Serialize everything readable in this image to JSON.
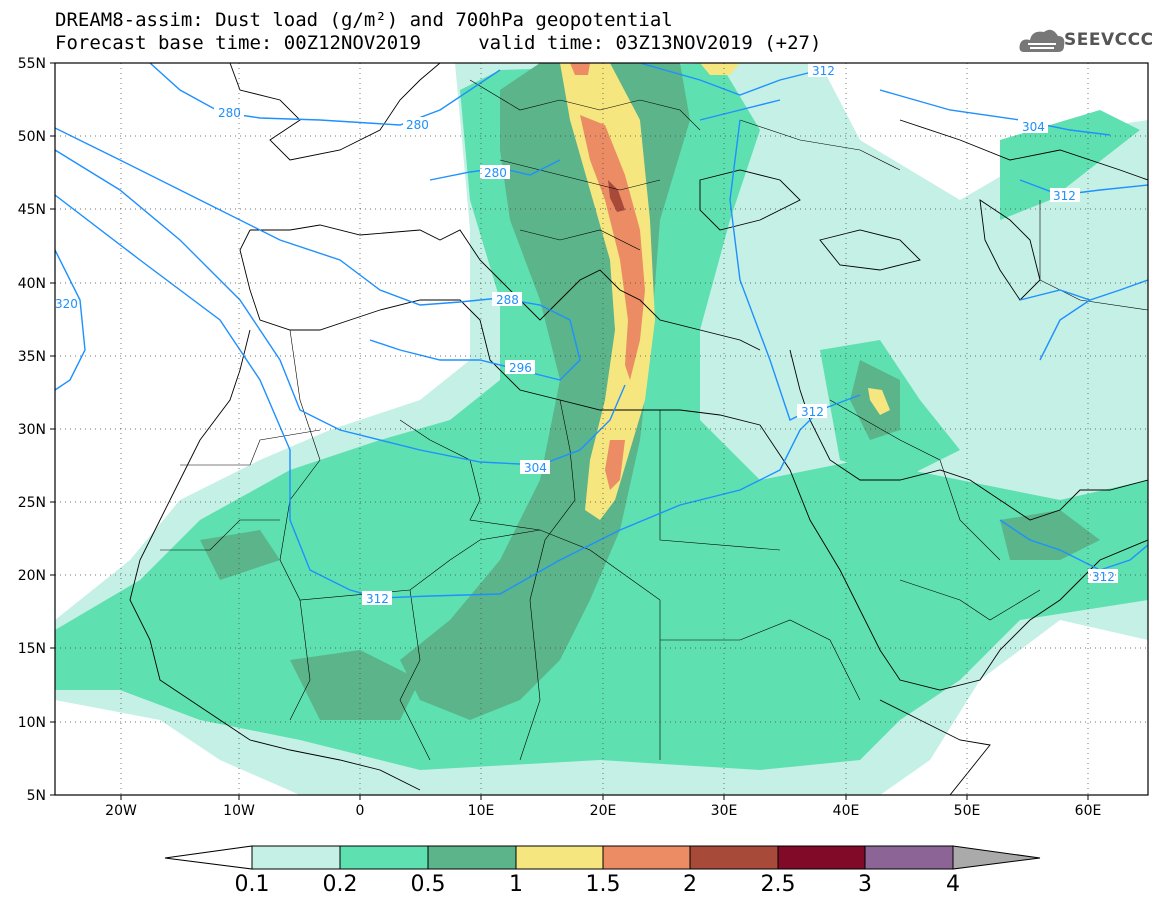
{
  "title": {
    "line1": "DREAM8-assim: Dust load (g/m²) and 700hPa geopotential",
    "line2": "Forecast base time: 00Z12NOV2019     valid time: 03Z13NOV2019 (+27)"
  },
  "logo": {
    "text": "SEEVCCC",
    "icon": "cloud-icon"
  },
  "axes": {
    "lat_labels": [
      "55N",
      "50N",
      "45N",
      "40N",
      "35N",
      "30N",
      "25N",
      "20N",
      "15N",
      "10N",
      "5N"
    ],
    "lon_labels": [
      "20W",
      "10W",
      "0",
      "10E",
      "20E",
      "30E",
      "40E",
      "50E",
      "60E"
    ],
    "lon_range": [
      -25,
      65
    ],
    "lat_range": [
      5,
      55
    ]
  },
  "colorbar": {
    "levels": [
      "0.1",
      "0.2",
      "0.5",
      "1",
      "1.5",
      "2",
      "2.5",
      "3",
      "4"
    ],
    "colors": [
      "#ffffff",
      "#c4f0e6",
      "#5ee0b0",
      "#5bb48a",
      "#f5e680",
      "#eb8c64",
      "#a84a3a",
      "#800a28",
      "#8c6496",
      "#aaaaaa"
    ]
  },
  "contours": {
    "color": "#1e90ff",
    "labels": [
      "280",
      "280",
      "280",
      "288",
      "296",
      "304",
      "312",
      "312",
      "312",
      "312",
      "312",
      "304",
      "312",
      "320"
    ]
  }
}
